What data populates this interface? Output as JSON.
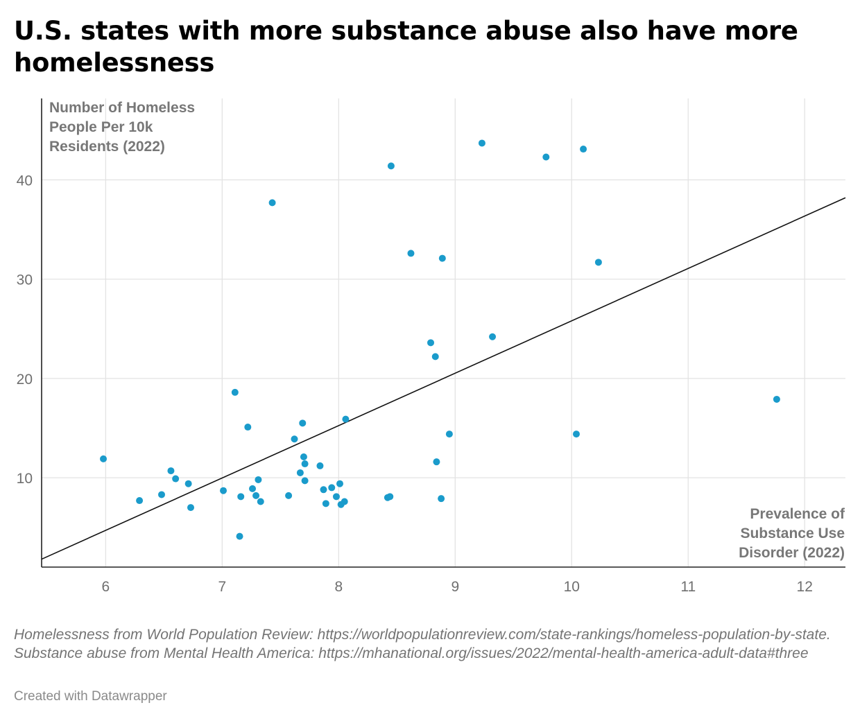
{
  "title": "U.S. states with more substance abuse also have more homelessness",
  "source_note": "Homelessness from World Population Review: https://worldpopulationreview.com/state-rankings/homeless-population-by-state. Substance abuse from Mental Health America: https://mhanational.org/issues/2022/mental-health-america-adult-data#three",
  "credit": "Created with Datawrapper",
  "colors": {
    "point": "#1a9bcb",
    "trendline": "#111111",
    "grid": "#e3e3e3",
    "axis": "#222222",
    "tick_text": "#6f6f6f",
    "axis_title": "#777777"
  },
  "chart_data": {
    "type": "scatter",
    "title": "U.S. states with more substance abuse also have more homelessness",
    "xlabel": "Prevalence of Substance Use Disorder (2022)",
    "ylabel": "Number of Homeless People Per 10k Residents (2022)",
    "xlabel_lines": [
      "Prevalence of",
      "Substance Use",
      "Disorder (2022)"
    ],
    "ylabel_lines": [
      "Number of Homeless",
      "People Per 10k",
      "Residents (2022)"
    ],
    "xlim": [
      5.45,
      12.35
    ],
    "ylim": [
      1,
      48.2
    ],
    "x_ticks": [
      6,
      7,
      8,
      9,
      10,
      11,
      12
    ],
    "y_ticks": [
      10,
      20,
      30,
      40
    ],
    "grid": true,
    "trendline": {
      "x": [
        5.45,
        12.35
      ],
      "y": [
        1.8,
        38.2
      ]
    },
    "points": [
      {
        "x": 5.98,
        "y": 11.9
      },
      {
        "x": 6.29,
        "y": 7.7
      },
      {
        "x": 6.48,
        "y": 8.3
      },
      {
        "x": 6.56,
        "y": 10.7
      },
      {
        "x": 6.6,
        "y": 9.9
      },
      {
        "x": 6.71,
        "y": 9.4
      },
      {
        "x": 6.73,
        "y": 7.0
      },
      {
        "x": 7.01,
        "y": 8.7
      },
      {
        "x": 7.11,
        "y": 18.6
      },
      {
        "x": 7.15,
        "y": 4.1
      },
      {
        "x": 7.16,
        "y": 8.1
      },
      {
        "x": 7.22,
        "y": 15.1
      },
      {
        "x": 7.26,
        "y": 8.9
      },
      {
        "x": 7.29,
        "y": 8.2
      },
      {
        "x": 7.31,
        "y": 9.8
      },
      {
        "x": 7.33,
        "y": 7.6
      },
      {
        "x": 7.43,
        "y": 37.7
      },
      {
        "x": 7.57,
        "y": 8.2
      },
      {
        "x": 7.62,
        "y": 13.9
      },
      {
        "x": 7.67,
        "y": 10.5
      },
      {
        "x": 7.69,
        "y": 15.5
      },
      {
        "x": 7.7,
        "y": 12.1
      },
      {
        "x": 7.71,
        "y": 11.4
      },
      {
        "x": 7.71,
        "y": 9.7
      },
      {
        "x": 7.84,
        "y": 11.2
      },
      {
        "x": 7.87,
        "y": 8.8
      },
      {
        "x": 7.89,
        "y": 7.4
      },
      {
        "x": 7.94,
        "y": 9.0
      },
      {
        "x": 7.98,
        "y": 8.1
      },
      {
        "x": 8.01,
        "y": 9.4
      },
      {
        "x": 8.02,
        "y": 7.3
      },
      {
        "x": 8.05,
        "y": 7.6
      },
      {
        "x": 8.06,
        "y": 15.9
      },
      {
        "x": 8.42,
        "y": 8.0
      },
      {
        "x": 8.44,
        "y": 8.1
      },
      {
        "x": 8.45,
        "y": 41.4
      },
      {
        "x": 8.62,
        "y": 32.6
      },
      {
        "x": 8.79,
        "y": 23.6
      },
      {
        "x": 8.83,
        "y": 22.2
      },
      {
        "x": 8.84,
        "y": 11.6
      },
      {
        "x": 8.88,
        "y": 7.9
      },
      {
        "x": 8.89,
        "y": 32.1
      },
      {
        "x": 8.95,
        "y": 14.4
      },
      {
        "x": 9.23,
        "y": 43.7
      },
      {
        "x": 9.32,
        "y": 24.2
      },
      {
        "x": 9.78,
        "y": 42.3
      },
      {
        "x": 10.04,
        "y": 14.4
      },
      {
        "x": 10.1,
        "y": 43.1
      },
      {
        "x": 10.23,
        "y": 31.7
      },
      {
        "x": 11.76,
        "y": 17.9
      }
    ]
  }
}
